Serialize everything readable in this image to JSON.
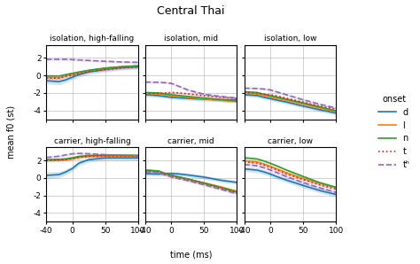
{
  "title": "Central Thai",
  "xlabel": "time (ms)",
  "ylabel": "mean f0 (st)",
  "legend_title": "onset",
  "legend": "right",
  "chart_data": [
    {
      "type": "line",
      "title": "isolation, high-falling",
      "row": 0,
      "col": 0,
      "tick_labels": "y",
      "x": [
        -40,
        -20,
        -10,
        0,
        10,
        25,
        50,
        75,
        100
      ],
      "xlim": [
        -40,
        100
      ],
      "xticks": [
        -40,
        0,
        50,
        100
      ],
      "ylim": [
        -5.0,
        3.5
      ],
      "yticks": [
        -4,
        -2,
        0,
        2
      ],
      "grid": true,
      "series": [
        {
          "name": "d",
          "line_style": "solid",
          "values": [
            -0.6,
            -0.7,
            -0.5,
            -0.2,
            0.1,
            0.4,
            0.7,
            0.9,
            1.0
          ],
          "sd": [
            0.35,
            0.35,
            0.3,
            0.28,
            0.28,
            0.28,
            0.28,
            0.28,
            0.28
          ]
        },
        {
          "name": "l",
          "line_style": "solid",
          "values": [
            -0.2,
            -0.25,
            0.0,
            0.15,
            0.3,
            0.55,
            0.8,
            1.0,
            1.1
          ],
          "sd": [
            0.12,
            0.12,
            0.12,
            0.12,
            0.12,
            0.12,
            0.12,
            0.12,
            0.12
          ]
        },
        {
          "name": "n",
          "line_style": "solid",
          "values": [
            -0.05,
            -0.05,
            0.1,
            0.25,
            0.4,
            0.6,
            0.85,
            1.0,
            1.1
          ],
          "sd": [
            0.12,
            0.12,
            0.12,
            0.12,
            0.12,
            0.12,
            0.12,
            0.12,
            0.12
          ]
        },
        {
          "name": "t",
          "line_style": "dotted",
          "values": [
            -0.3,
            -0.3,
            -0.1,
            0.05,
            0.2,
            0.45,
            0.65,
            0.85,
            0.95
          ],
          "sd": [
            0.12,
            0.12,
            0.12,
            0.12,
            0.12,
            0.12,
            0.12,
            0.12,
            0.12
          ]
        },
        {
          "name": "tʰ",
          "line_style": "dashed",
          "values": [
            1.85,
            1.85,
            1.85,
            1.82,
            1.78,
            1.72,
            1.62,
            1.55,
            1.5
          ],
          "sd": [
            0.12,
            0.12,
            0.12,
            0.12,
            0.12,
            0.12,
            0.12,
            0.12,
            0.12
          ]
        }
      ]
    },
    {
      "type": "line",
      "title": "isolation, mid",
      "row": 0,
      "col": 1,
      "tick_labels": false,
      "x": [
        -40,
        -20,
        -10,
        0,
        10,
        25,
        50,
        75,
        100
      ],
      "xlim": [
        -40,
        100
      ],
      "xticks": [
        -40,
        0,
        50,
        100
      ],
      "ylim": [
        -5.0,
        3.5
      ],
      "yticks": [
        -4,
        -2,
        0,
        2
      ],
      "grid": true,
      "series": [
        {
          "name": "d",
          "line_style": "solid",
          "values": [
            -2.2,
            -2.3,
            -2.4,
            -2.5,
            -2.55,
            -2.62,
            -2.72,
            -2.78,
            -2.82
          ],
          "sd": [
            0.22,
            0.22,
            0.22,
            0.22,
            0.22,
            0.22,
            0.22,
            0.22,
            0.22
          ]
        },
        {
          "name": "l",
          "line_style": "solid",
          "values": [
            -2.05,
            -2.1,
            -2.2,
            -2.3,
            -2.38,
            -2.5,
            -2.68,
            -2.85,
            -3.0
          ],
          "sd": [
            0.12,
            0.12,
            0.12,
            0.12,
            0.12,
            0.12,
            0.12,
            0.12,
            0.12
          ]
        },
        {
          "name": "n",
          "line_style": "solid",
          "values": [
            -1.95,
            -2.0,
            -2.1,
            -2.2,
            -2.28,
            -2.4,
            -2.58,
            -2.75,
            -2.9
          ],
          "sd": [
            0.12,
            0.12,
            0.12,
            0.12,
            0.12,
            0.12,
            0.12,
            0.12,
            0.12
          ]
        },
        {
          "name": "t",
          "line_style": "dotted",
          "values": [
            -2.05,
            -2.05,
            -2.0,
            -1.95,
            -1.98,
            -2.1,
            -2.3,
            -2.48,
            -2.62
          ],
          "sd": [
            0.12,
            0.12,
            0.12,
            0.12,
            0.12,
            0.12,
            0.12,
            0.12,
            0.12
          ]
        },
        {
          "name": "tʰ",
          "line_style": "dashed",
          "values": [
            -0.75,
            -0.78,
            -0.82,
            -0.9,
            -1.2,
            -1.65,
            -2.15,
            -2.4,
            -2.58
          ],
          "sd": [
            0.12,
            0.12,
            0.12,
            0.12,
            0.12,
            0.12,
            0.12,
            0.12,
            0.12
          ]
        }
      ]
    },
    {
      "type": "line",
      "title": "isolation, low",
      "row": 0,
      "col": 2,
      "tick_labels": false,
      "x": [
        -40,
        -20,
        -10,
        0,
        10,
        25,
        50,
        75,
        100
      ],
      "xlim": [
        -40,
        100
      ],
      "xticks": [
        -40,
        0,
        50,
        100
      ],
      "ylim": [
        -5.0,
        3.5
      ],
      "yticks": [
        -4,
        -2,
        0,
        2
      ],
      "grid": true,
      "series": [
        {
          "name": "d",
          "line_style": "solid",
          "values": [
            -2.2,
            -2.3,
            -2.5,
            -2.65,
            -2.82,
            -3.05,
            -3.5,
            -3.92,
            -4.3
          ],
          "sd": [
            0.22,
            0.22,
            0.22,
            0.22,
            0.22,
            0.22,
            0.22,
            0.22,
            0.22
          ]
        },
        {
          "name": "l",
          "line_style": "solid",
          "values": [
            -2.0,
            -2.1,
            -2.3,
            -2.45,
            -2.62,
            -2.85,
            -3.28,
            -3.72,
            -4.15
          ],
          "sd": [
            0.12,
            0.12,
            0.12,
            0.12,
            0.12,
            0.12,
            0.12,
            0.12,
            0.12
          ]
        },
        {
          "name": "n",
          "line_style": "solid",
          "values": [
            -1.85,
            -1.95,
            -2.15,
            -2.32,
            -2.48,
            -2.72,
            -3.15,
            -3.6,
            -4.05
          ],
          "sd": [
            0.12,
            0.12,
            0.12,
            0.12,
            0.12,
            0.12,
            0.12,
            0.12,
            0.12
          ]
        },
        {
          "name": "t",
          "line_style": "dotted",
          "values": [
            -1.95,
            -2.05,
            -2.15,
            -2.2,
            -2.35,
            -2.62,
            -3.05,
            -3.5,
            -3.85
          ],
          "sd": [
            0.12,
            0.12,
            0.12,
            0.12,
            0.12,
            0.12,
            0.12,
            0.12,
            0.12
          ]
        },
        {
          "name": "tʰ",
          "line_style": "dashed",
          "values": [
            -1.45,
            -1.48,
            -1.55,
            -1.65,
            -1.88,
            -2.22,
            -2.78,
            -3.28,
            -3.72
          ],
          "sd": [
            0.12,
            0.12,
            0.12,
            0.12,
            0.12,
            0.12,
            0.12,
            0.12,
            0.12
          ]
        }
      ]
    },
    {
      "type": "line",
      "title": "carrier, high-falling",
      "row": 1,
      "col": 0,
      "tick_labels": true,
      "x": [
        -40,
        -20,
        -10,
        0,
        10,
        25,
        50,
        75,
        100
      ],
      "xlim": [
        -40,
        100
      ],
      "xticks": [
        -40,
        0,
        50,
        100
      ],
      "ylim": [
        -5.0,
        3.5
      ],
      "yticks": [
        -4,
        -2,
        0,
        2
      ],
      "grid": true,
      "series": [
        {
          "name": "d",
          "line_style": "solid",
          "values": [
            0.3,
            0.4,
            0.7,
            1.1,
            1.7,
            2.1,
            2.3,
            2.3,
            2.3
          ],
          "sd": [
            0.38,
            0.35,
            0.32,
            0.3,
            0.28,
            0.28,
            0.28,
            0.28,
            0.28
          ]
        },
        {
          "name": "l",
          "line_style": "solid",
          "values": [
            2.0,
            2.05,
            2.1,
            2.2,
            2.38,
            2.48,
            2.52,
            2.52,
            2.5
          ],
          "sd": [
            0.12,
            0.12,
            0.12,
            0.12,
            0.12,
            0.12,
            0.12,
            0.12,
            0.12
          ]
        },
        {
          "name": "n",
          "line_style": "solid",
          "values": [
            2.1,
            2.15,
            2.2,
            2.32,
            2.48,
            2.58,
            2.62,
            2.62,
            2.6
          ],
          "sd": [
            0.12,
            0.12,
            0.12,
            0.12,
            0.12,
            0.12,
            0.12,
            0.12,
            0.12
          ]
        },
        {
          "name": "t",
          "line_style": "dotted",
          "values": [
            2.0,
            2.05,
            2.1,
            2.22,
            2.38,
            2.48,
            2.52,
            2.52,
            2.5
          ],
          "sd": [
            0.12,
            0.12,
            0.12,
            0.12,
            0.12,
            0.12,
            0.12,
            0.12,
            0.12
          ]
        },
        {
          "name": "tʰ",
          "line_style": "dashed",
          "values": [
            2.35,
            2.5,
            2.65,
            2.78,
            2.82,
            2.78,
            2.68,
            2.6,
            2.55
          ],
          "sd": [
            0.12,
            0.12,
            0.12,
            0.12,
            0.12,
            0.12,
            0.12,
            0.12,
            0.12
          ]
        }
      ]
    },
    {
      "type": "line",
      "title": "carrier, mid",
      "row": 1,
      "col": 1,
      "tick_labels": "x",
      "x": [
        -40,
        -20,
        -10,
        0,
        10,
        25,
        50,
        75,
        100
      ],
      "xlim": [
        -40,
        100
      ],
      "xticks": [
        -40,
        0,
        50,
        100
      ],
      "ylim": [
        -5.0,
        3.5
      ],
      "yticks": [
        -4,
        -2,
        0,
        2
      ],
      "grid": true,
      "series": [
        {
          "name": "d",
          "line_style": "solid",
          "values": [
            0.5,
            0.45,
            0.5,
            0.52,
            0.48,
            0.35,
            0.1,
            -0.25,
            -0.5
          ],
          "sd": [
            0.22,
            0.22,
            0.22,
            0.22,
            0.22,
            0.22,
            0.22,
            0.22,
            0.22
          ]
        },
        {
          "name": "l",
          "line_style": "solid",
          "values": [
            0.85,
            0.75,
            0.5,
            0.28,
            0.12,
            -0.12,
            -0.55,
            -1.0,
            -1.5
          ],
          "sd": [
            0.12,
            0.12,
            0.12,
            0.12,
            0.12,
            0.12,
            0.12,
            0.12,
            0.12
          ]
        },
        {
          "name": "n",
          "line_style": "solid",
          "values": [
            0.92,
            0.82,
            0.55,
            0.32,
            0.15,
            -0.1,
            -0.58,
            -1.08,
            -1.6
          ],
          "sd": [
            0.12,
            0.12,
            0.12,
            0.12,
            0.12,
            0.12,
            0.12,
            0.12,
            0.12
          ]
        },
        {
          "name": "t",
          "line_style": "dotted",
          "values": [
            0.82,
            0.72,
            0.45,
            0.22,
            0.05,
            -0.2,
            -0.65,
            -1.15,
            -1.68
          ],
          "sd": [
            0.12,
            0.12,
            0.12,
            0.12,
            0.12,
            0.12,
            0.12,
            0.12,
            0.12
          ]
        },
        {
          "name": "tʰ",
          "line_style": "dashed",
          "values": [
            0.72,
            0.62,
            0.35,
            0.12,
            -0.05,
            -0.3,
            -0.78,
            -1.28,
            -1.8
          ],
          "sd": [
            0.12,
            0.12,
            0.12,
            0.12,
            0.12,
            0.12,
            0.12,
            0.12,
            0.12
          ]
        }
      ]
    },
    {
      "type": "line",
      "title": "carrier, low",
      "row": 1,
      "col": 2,
      "tick_labels": "x",
      "x": [
        -40,
        -20,
        -10,
        0,
        10,
        25,
        50,
        75,
        100
      ],
      "xlim": [
        -40,
        100
      ],
      "xticks": [
        -40,
        0,
        50,
        100
      ],
      "ylim": [
        -5.0,
        3.5
      ],
      "yticks": [
        -4,
        -2,
        0,
        2
      ],
      "grid": true,
      "series": [
        {
          "name": "d",
          "line_style": "solid",
          "values": [
            1.05,
            0.9,
            0.7,
            0.45,
            0.15,
            -0.25,
            -0.85,
            -1.42,
            -1.88
          ],
          "sd": [
            0.28,
            0.28,
            0.28,
            0.28,
            0.28,
            0.28,
            0.28,
            0.28,
            0.28
          ]
        },
        {
          "name": "l",
          "line_style": "solid",
          "values": [
            2.0,
            1.85,
            1.62,
            1.35,
            1.05,
            0.6,
            -0.05,
            -0.62,
            -1.1
          ],
          "sd": [
            0.12,
            0.12,
            0.12,
            0.12,
            0.12,
            0.12,
            0.12,
            0.12,
            0.12
          ]
        },
        {
          "name": "n",
          "line_style": "solid",
          "values": [
            2.32,
            2.18,
            1.95,
            1.68,
            1.38,
            0.9,
            0.18,
            -0.52,
            -1.05
          ],
          "sd": [
            0.12,
            0.12,
            0.12,
            0.12,
            0.12,
            0.12,
            0.12,
            0.12,
            0.12
          ]
        },
        {
          "name": "t",
          "line_style": "dotted",
          "values": [
            1.85,
            1.7,
            1.48,
            1.22,
            0.92,
            0.45,
            -0.18,
            -0.78,
            -1.28
          ],
          "sd": [
            0.12,
            0.12,
            0.12,
            0.12,
            0.12,
            0.12,
            0.12,
            0.12,
            0.12
          ]
        },
        {
          "name": "tʰ",
          "line_style": "dashed",
          "values": [
            1.55,
            1.4,
            1.18,
            0.92,
            0.62,
            0.15,
            -0.52,
            -1.12,
            -1.62
          ],
          "sd": [
            0.12,
            0.12,
            0.12,
            0.12,
            0.12,
            0.12,
            0.12,
            0.12,
            0.12
          ]
        }
      ]
    }
  ]
}
